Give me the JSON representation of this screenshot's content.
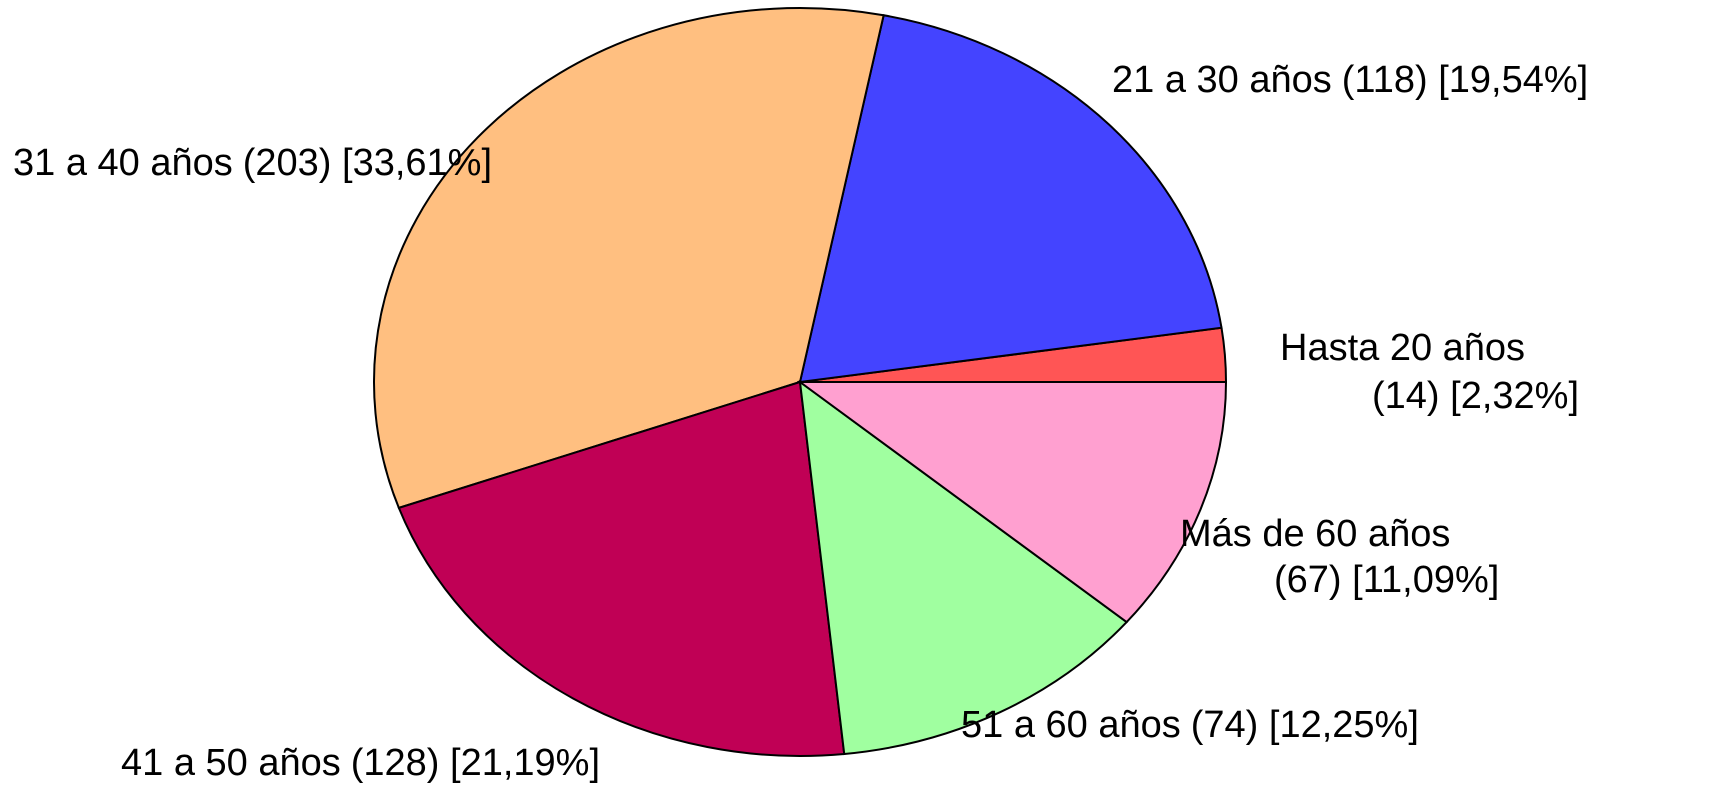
{
  "chart_data": {
    "type": "pie",
    "categories": [
      "Hasta 20 años",
      "21 a 30 años",
      "31 a 40 años",
      "41 a 50 años",
      "51 a 60 años",
      "Más de 60 años"
    ],
    "values": [
      14,
      118,
      203,
      128,
      74,
      67
    ],
    "value_labels": [
      "(14) [2,32%]",
      "(118) [19,54%]",
      "(203) [33,61%]",
      "(128) [21,19%]",
      "(74) [12,25%]",
      "(67) [11,09%]"
    ],
    "colors": [
      "#FF5555",
      "#4444FF",
      "#FFBF80",
      "#C00055",
      "#A0FFA0",
      "#FFA0D0"
    ]
  }
}
